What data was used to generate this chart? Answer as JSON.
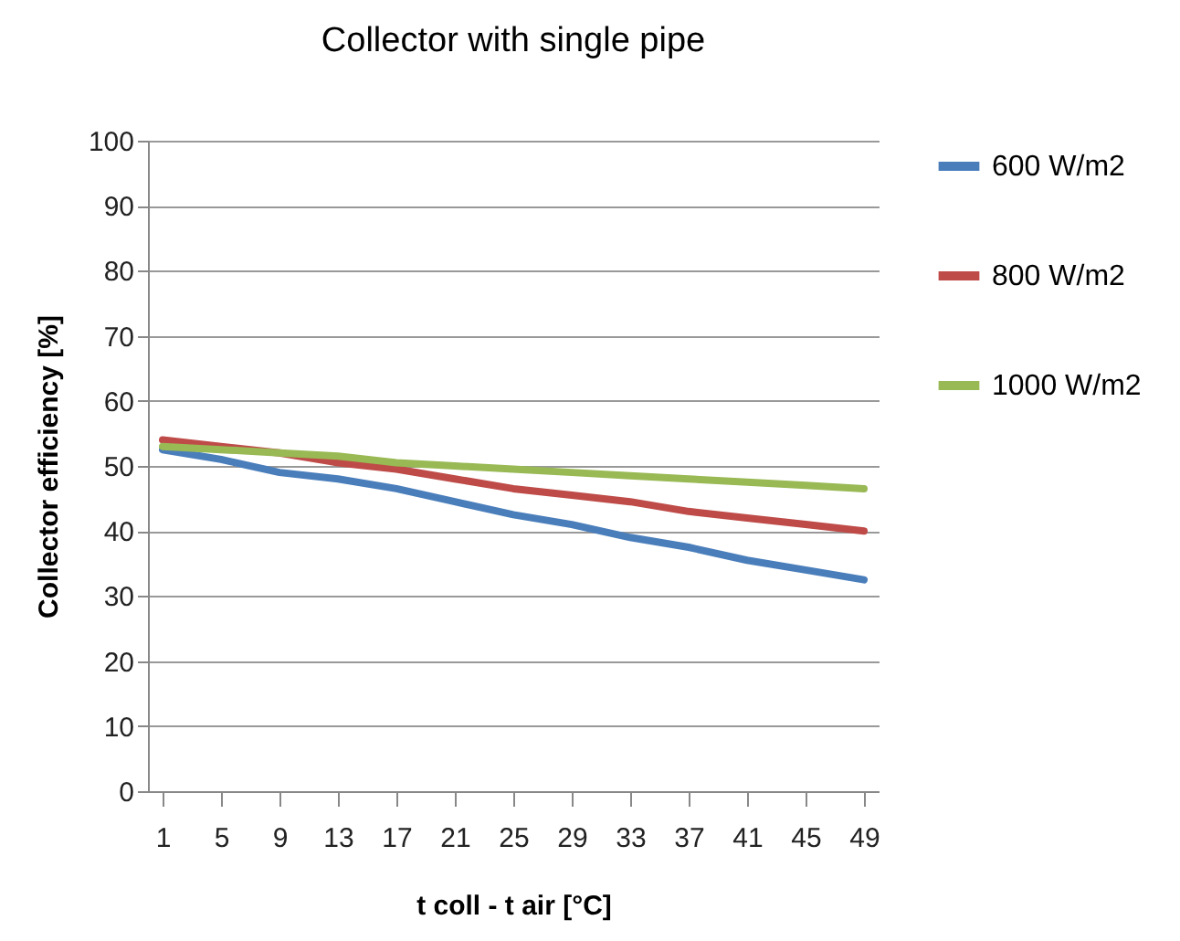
{
  "chart_data": {
    "type": "line",
    "title": "Collector with single pipe",
    "xlabel": "t coll - t air [°C]",
    "ylabel": "Collector efficiency [%]",
    "x": [
      1,
      5,
      9,
      13,
      17,
      21,
      25,
      29,
      33,
      37,
      41,
      45,
      49
    ],
    "xlim": [
      0,
      50
    ],
    "xticks": [
      1,
      5,
      9,
      13,
      17,
      21,
      25,
      29,
      33,
      37,
      41,
      45,
      49
    ],
    "ylim": [
      0,
      100
    ],
    "yticks": [
      0,
      10,
      20,
      30,
      40,
      50,
      60,
      70,
      80,
      90,
      100
    ],
    "series": [
      {
        "name": "600 W/m2",
        "color": "#4a7ebb",
        "values": [
          52.5,
          51,
          49,
          48,
          46.5,
          44.5,
          42.5,
          41,
          39,
          37.5,
          35.5,
          34,
          32.5
        ]
      },
      {
        "name": "800 W/m2",
        "color": "#be4b48",
        "values": [
          54,
          53,
          52,
          50.5,
          49.5,
          48,
          46.5,
          45.5,
          44.5,
          43,
          42,
          41,
          40
        ]
      },
      {
        "name": "1000 W/m2",
        "color": "#98b954",
        "values": [
          53,
          52.5,
          52,
          51.5,
          50.5,
          50,
          49.5,
          49,
          48.5,
          48,
          47.5,
          47,
          46.5
        ]
      }
    ],
    "grid": "y",
    "legend": "right",
    "marker": "none",
    "line_style": "solid"
  }
}
